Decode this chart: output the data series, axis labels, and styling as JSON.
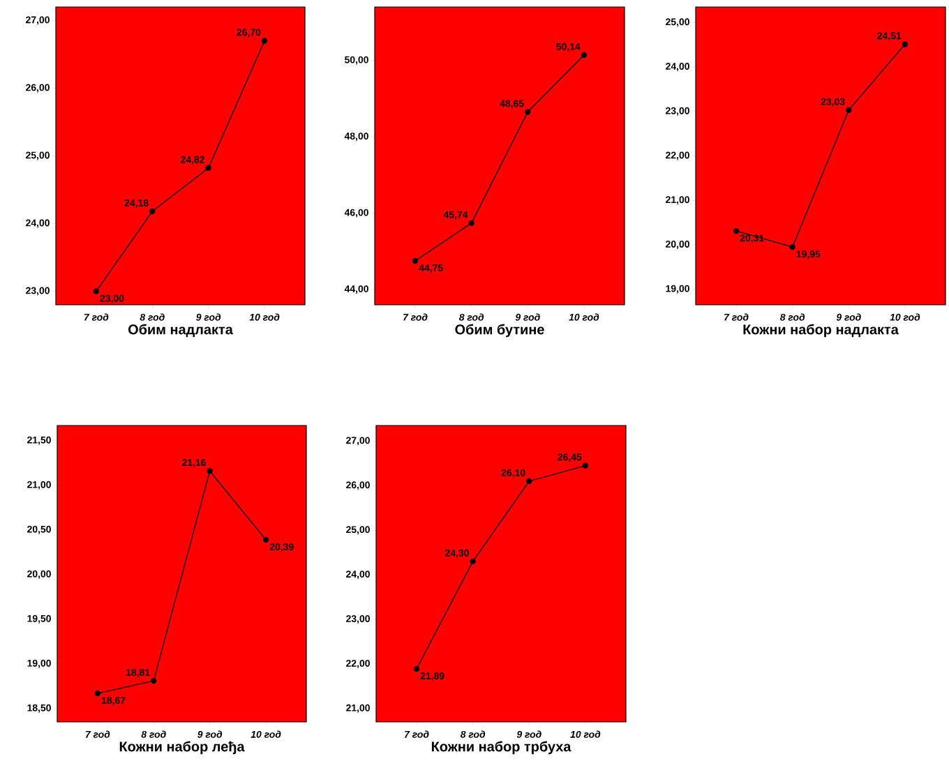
{
  "chart_data": [
    {
      "type": "line",
      "xlabel": "Обим надлакта",
      "categories": [
        "7 год",
        "8 год",
        "9 год",
        "10 год"
      ],
      "values": [
        23.0,
        24.18,
        24.82,
        26.7
      ],
      "value_labels": [
        "23,00",
        "24,18",
        "24,82",
        "26,70"
      ],
      "color": "#000000",
      "marker": "circle",
      "ylim": [
        22.8,
        27.2
      ],
      "yticks": [
        {
          "value": 23,
          "label": "23,00"
        },
        {
          "value": 24,
          "label": "24,00"
        },
        {
          "value": 25,
          "label": "25,00"
        },
        {
          "value": 26,
          "label": "26,00"
        },
        {
          "value": 27,
          "label": "27,00"
        }
      ]
    },
    {
      "type": "line",
      "xlabel": "Обим бутине",
      "categories": [
        "7 год",
        "8 год",
        "9 год",
        "10 год"
      ],
      "values": [
        44.75,
        45.74,
        48.65,
        50.14
      ],
      "value_labels": [
        "44,75",
        "45,74",
        "48,65",
        "50,14"
      ],
      "color": "#000000",
      "marker": "circle",
      "ylim": [
        43.6,
        51.4
      ],
      "yticks": [
        {
          "value": 44,
          "label": "44,00"
        },
        {
          "value": 46,
          "label": "46,00"
        },
        {
          "value": 48,
          "label": "48,00"
        },
        {
          "value": 50,
          "label": "50,00"
        }
      ]
    },
    {
      "type": "line",
      "xlabel": "Кожни набор надлакта",
      "categories": [
        "7 год",
        "8 год",
        "9 год",
        "10 год"
      ],
      "values": [
        20.31,
        19.95,
        23.03,
        24.51
      ],
      "value_labels": [
        "20,31",
        "19,95",
        "23,03",
        "24,51"
      ],
      "color": "#000000",
      "marker": "circle",
      "ylim": [
        18.65,
        25.35
      ],
      "yticks": [
        {
          "value": 19,
          "label": "19,00"
        },
        {
          "value": 20,
          "label": "20,00"
        },
        {
          "value": 21,
          "label": "21,00"
        },
        {
          "value": 22,
          "label": "22,00"
        },
        {
          "value": 23,
          "label": "23,00"
        },
        {
          "value": 24,
          "label": "24,00"
        },
        {
          "value": 25,
          "label": "25,00"
        }
      ]
    },
    {
      "type": "line",
      "xlabel": "Кожни набор леђа",
      "categories": [
        "7 год",
        "8 год",
        "9 год",
        "10 год"
      ],
      "values": [
        18.67,
        18.81,
        21.16,
        20.39
      ],
      "value_labels": [
        "18,67",
        "18,81",
        "21,16",
        "20,39"
      ],
      "color": "#000000",
      "marker": "circle",
      "ylim": [
        18.35,
        21.67
      ],
      "yticks": [
        {
          "value": 18.5,
          "label": "18,50"
        },
        {
          "value": 19,
          "label": "19,00"
        },
        {
          "value": 19.5,
          "label": "19,50"
        },
        {
          "value": 20,
          "label": "20,00"
        },
        {
          "value": 20.5,
          "label": "20,50"
        },
        {
          "value": 21,
          "label": "21,00"
        },
        {
          "value": 21.5,
          "label": "21,50"
        }
      ]
    },
    {
      "type": "line",
      "xlabel": "Кожни набор трбуха",
      "categories": [
        "7 год",
        "8 год",
        "9 год",
        "10 год"
      ],
      "values": [
        21.89,
        24.3,
        26.1,
        26.45
      ],
      "value_labels": [
        "21,89",
        "24,30",
        "26,10",
        "26,45"
      ],
      "color": "#000000",
      "marker": "circle",
      "ylim": [
        20.7,
        27.35
      ],
      "yticks": [
        {
          "value": 21,
          "label": "21,00"
        },
        {
          "value": 22,
          "label": "22,00"
        },
        {
          "value": 23,
          "label": "23,00"
        },
        {
          "value": 24,
          "label": "24,00"
        },
        {
          "value": 25,
          "label": "25,00"
        },
        {
          "value": 26,
          "label": "26,00"
        },
        {
          "value": 27,
          "label": "27,00"
        }
      ]
    }
  ]
}
